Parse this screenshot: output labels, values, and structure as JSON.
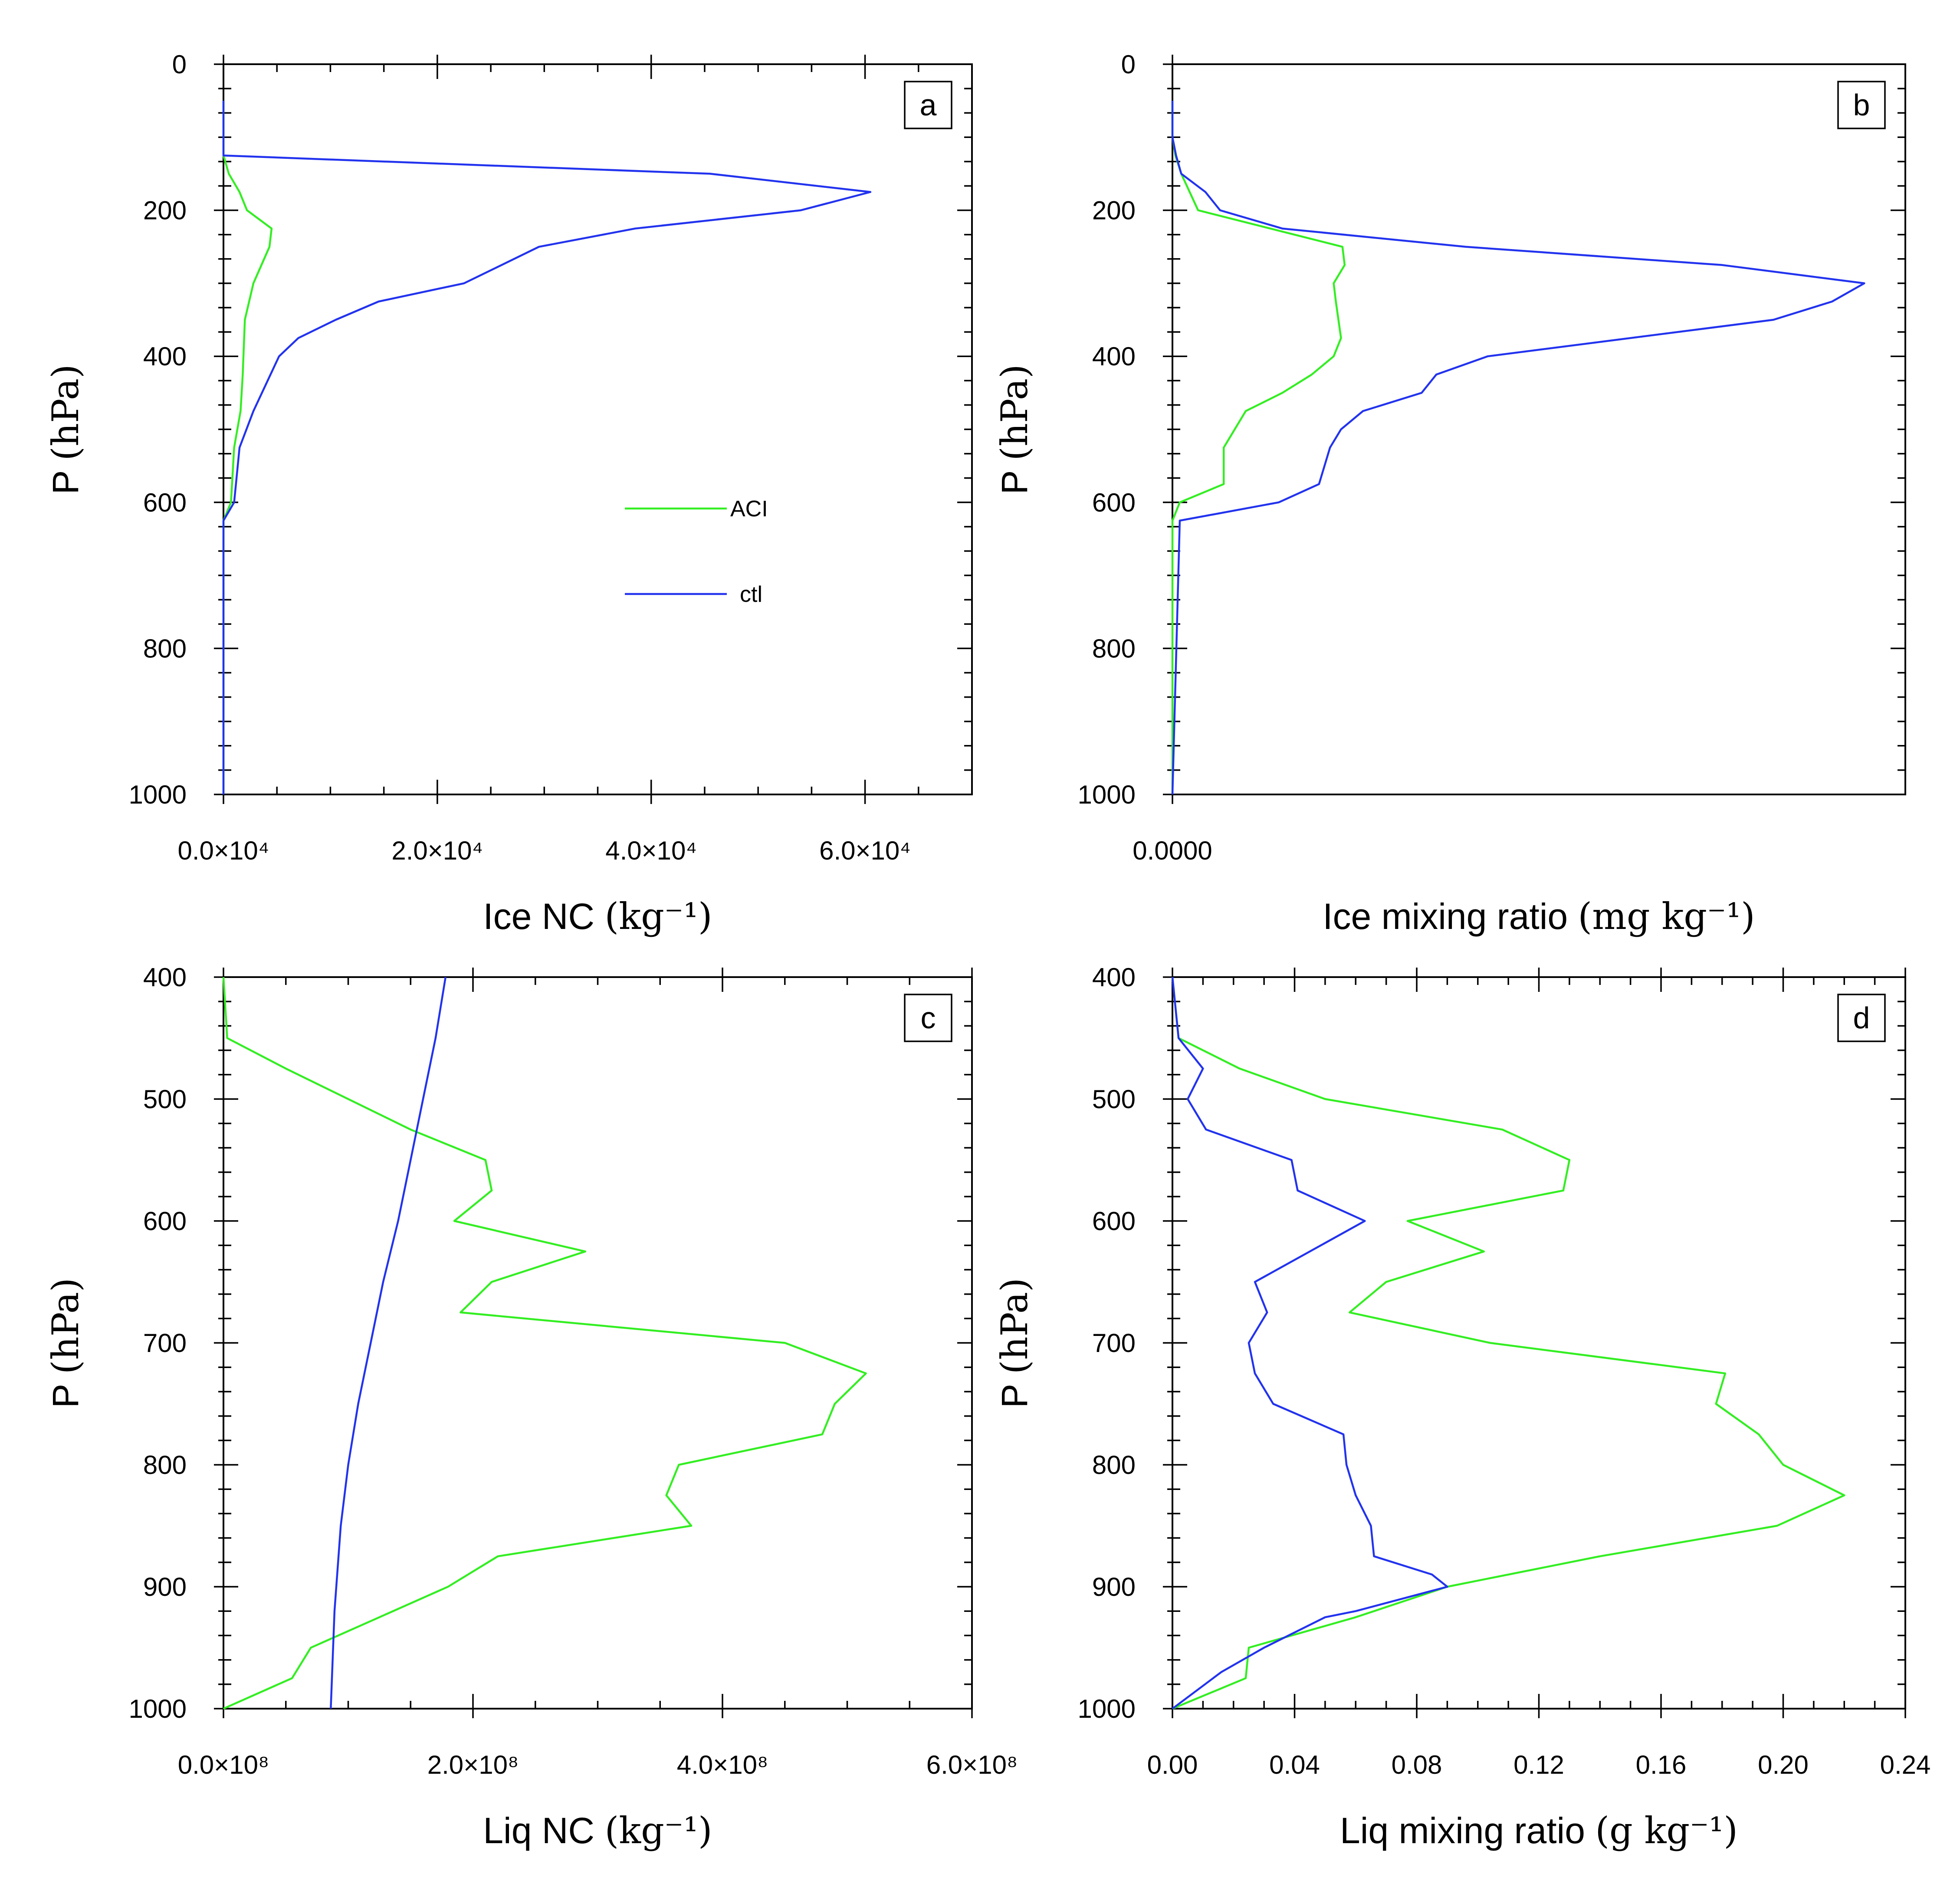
{
  "colors": {
    "ACI": "#33ee22",
    "ctl": "#2233ee"
  },
  "chart_data": [
    {
      "id": "a",
      "type": "line",
      "panel_label": "a",
      "xlabel": "Ice NC",
      "xunit": "(kg⁻¹)",
      "ylabel": "P",
      "yunit": "(hPa)",
      "xlim": [
        0,
        70000
      ],
      "ylim": [
        1000,
        0
      ],
      "xticks": [
        0,
        20000,
        40000,
        60000
      ],
      "xtick_labels": [
        "0.0×10⁴",
        "2.0×10⁴",
        "4.0×10⁴",
        "6.0×10⁴"
      ],
      "xminor": [
        5000,
        10000,
        15000,
        25000,
        30000,
        35000,
        45000,
        50000,
        55000,
        65000
      ],
      "yticks": [
        0,
        200,
        400,
        600,
        800,
        1000
      ],
      "ytick_labels": [
        "0",
        "200",
        "400",
        "600",
        "800",
        "1000"
      ],
      "legend": {
        "entries": [
          "ACI",
          "ctl"
        ],
        "position": "center-right"
      },
      "series": [
        {
          "name": "ACI",
          "x": [
            0,
            0,
            0,
            500,
            1500,
            2200,
            4500,
            4300,
            2800,
            2000,
            1800,
            1600,
            1000,
            700,
            0,
            0
          ],
          "y": [
            50,
            100,
            125,
            150,
            175,
            200,
            225,
            250,
            300,
            350,
            425,
            475,
            525,
            600,
            625,
            1000
          ]
        },
        {
          "name": "ctl",
          "x": [
            0,
            0,
            0,
            45500,
            60500,
            54000,
            38500,
            29500,
            22500,
            14500,
            10500,
            7000,
            5200,
            2800,
            1500,
            1000,
            0,
            0
          ],
          "y": [
            50,
            100,
            125,
            150,
            175,
            200,
            225,
            250,
            300,
            325,
            350,
            375,
            400,
            475,
            525,
            600,
            625,
            1000
          ]
        }
      ]
    },
    {
      "id": "b",
      "type": "line",
      "panel_label": "b",
      "xlabel": "Ice mixing ratio",
      "xunit": "(mg  kg⁻¹)",
      "ylabel": "P",
      "yunit": "(hPa)",
      "xlim": [
        0,
        1.0
      ],
      "ylim": [
        1000,
        0
      ],
      "xticks": [
        0
      ],
      "xtick_labels": [
        "0.0000"
      ],
      "xminor": [],
      "yticks": [
        0,
        200,
        400,
        600,
        800,
        1000
      ],
      "ytick_labels": [
        "0",
        "200",
        "400",
        "600",
        "800",
        "1000"
      ],
      "series": [
        {
          "name": "ACI",
          "x": [
            0,
            0,
            0.004,
            0.012,
            0.035,
            0.232,
            0.235,
            0.22,
            0.223,
            0.23,
            0.22,
            0.19,
            0.15,
            0.1,
            0.07,
            0.07,
            0.01,
            0,
            0,
            0
          ],
          "y": [
            50,
            100,
            125,
            150,
            200,
            250,
            275,
            300,
            325,
            375,
            400,
            425,
            450,
            475,
            525,
            575,
            600,
            625,
            650,
            1000
          ]
        },
        {
          "name": "ctl",
          "x": [
            0,
            0,
            0.005,
            0.012,
            0.045,
            0.065,
            0.15,
            0.4,
            0.75,
            0.944,
            0.9,
            0.82,
            0.43,
            0.36,
            0.34,
            0.26,
            0.23,
            0.215,
            0.2,
            0.145,
            0.01,
            0
          ],
          "y": [
            50,
            100,
            125,
            150,
            175,
            200,
            225,
            250,
            275,
            300,
            325,
            350,
            400,
            425,
            450,
            475,
            500,
            525,
            575,
            600,
            625,
            1000
          ]
        }
      ]
    },
    {
      "id": "c",
      "type": "line",
      "panel_label": "c",
      "xlabel": "Liq NC",
      "xunit": "(kg⁻¹)",
      "ylabel": "P",
      "yunit": "(hPa)",
      "xlim": [
        0,
        600000000
      ],
      "ylim": [
        1000,
        400
      ],
      "xticks": [
        0,
        200000000,
        400000000,
        600000000
      ],
      "xtick_labels": [
        "0.0×10⁸",
        "2.0×10⁸",
        "4.0×10⁸",
        "6.0×10⁸"
      ],
      "xminor": [
        50000000,
        100000000,
        150000000,
        250000000,
        300000000,
        350000000,
        450000000,
        500000000,
        550000000
      ],
      "yticks": [
        400,
        500,
        600,
        700,
        800,
        900,
        1000
      ],
      "ytick_labels": [
        "400",
        "500",
        "600",
        "700",
        "800",
        "900",
        "1000"
      ],
      "series": [
        {
          "name": "ACI",
          "x": [
            0,
            3000000,
            50000000,
            100000000,
            150000000,
            210000000,
            215000000,
            185000000,
            290000000,
            215000000,
            190000000,
            450000000,
            515000000,
            490000000,
            480000000,
            365000000,
            355000000,
            375000000,
            220000000,
            180000000,
            70000000,
            55000000,
            0
          ],
          "y": [
            400,
            450,
            475,
            500,
            525,
            550,
            575,
            600,
            625,
            650,
            675,
            700,
            725,
            750,
            775,
            800,
            825,
            850,
            875,
            900,
            950,
            975,
            1000
          ]
        },
        {
          "name": "ctl",
          "x": [
            178000000,
            170000000,
            160000000,
            150000000,
            140000000,
            128000000,
            118000000,
            108000000,
            100000000,
            94000000,
            89000000,
            86000000
          ],
          "y": [
            400,
            450,
            500,
            550,
            600,
            650,
            700,
            750,
            800,
            850,
            920,
            1000
          ]
        }
      ]
    },
    {
      "id": "d",
      "type": "line",
      "panel_label": "d",
      "xlabel": "Liq mixing ratio",
      "xunit": "(g  kg⁻¹)",
      "ylabel": "P",
      "yunit": "(hPa)",
      "xlim": [
        0,
        0.24
      ],
      "ylim": [
        1000,
        400
      ],
      "xticks": [
        0,
        0.04,
        0.08,
        0.12,
        0.16,
        0.2,
        0.24
      ],
      "xtick_labels": [
        "0.00",
        "0.04",
        "0.08",
        "0.12",
        "0.16",
        "0.20",
        "0.24"
      ],
      "xminor": [
        0.01,
        0.02,
        0.03,
        0.05,
        0.06,
        0.07,
        0.09,
        0.1,
        0.11,
        0.13,
        0.14,
        0.15,
        0.17,
        0.18,
        0.19,
        0.21,
        0.22,
        0.23
      ],
      "yticks": [
        400,
        500,
        600,
        700,
        800,
        900,
        1000
      ],
      "ytick_labels": [
        "400",
        "500",
        "600",
        "700",
        "800",
        "900",
        "1000"
      ],
      "series": [
        {
          "name": "ACI",
          "x": [
            0,
            0.002,
            0.022,
            0.05,
            0.108,
            0.13,
            0.128,
            0.077,
            0.102,
            0.07,
            0.058,
            0.104,
            0.181,
            0.178,
            0.192,
            0.2,
            0.22,
            0.198,
            0.14,
            0.09,
            0.06,
            0.025,
            0.024,
            0
          ],
          "y": [
            400,
            450,
            475,
            500,
            525,
            550,
            575,
            600,
            625,
            650,
            675,
            700,
            725,
            750,
            775,
            800,
            825,
            850,
            875,
            900,
            925,
            950,
            975,
            1000
          ]
        },
        {
          "name": "ctl",
          "x": [
            0,
            0.002,
            0.01,
            0.005,
            0.011,
            0.039,
            0.041,
            0.063,
            0.027,
            0.031,
            0.025,
            0.027,
            0.033,
            0.056,
            0.057,
            0.06,
            0.065,
            0.066,
            0.085,
            0.09,
            0.06,
            0.05,
            0.03,
            0.016,
            0
          ],
          "y": [
            400,
            450,
            475,
            500,
            525,
            550,
            575,
            600,
            650,
            675,
            700,
            725,
            750,
            775,
            800,
            825,
            850,
            875,
            890,
            900,
            920,
            925,
            950,
            970,
            1000
          ]
        }
      ]
    }
  ]
}
